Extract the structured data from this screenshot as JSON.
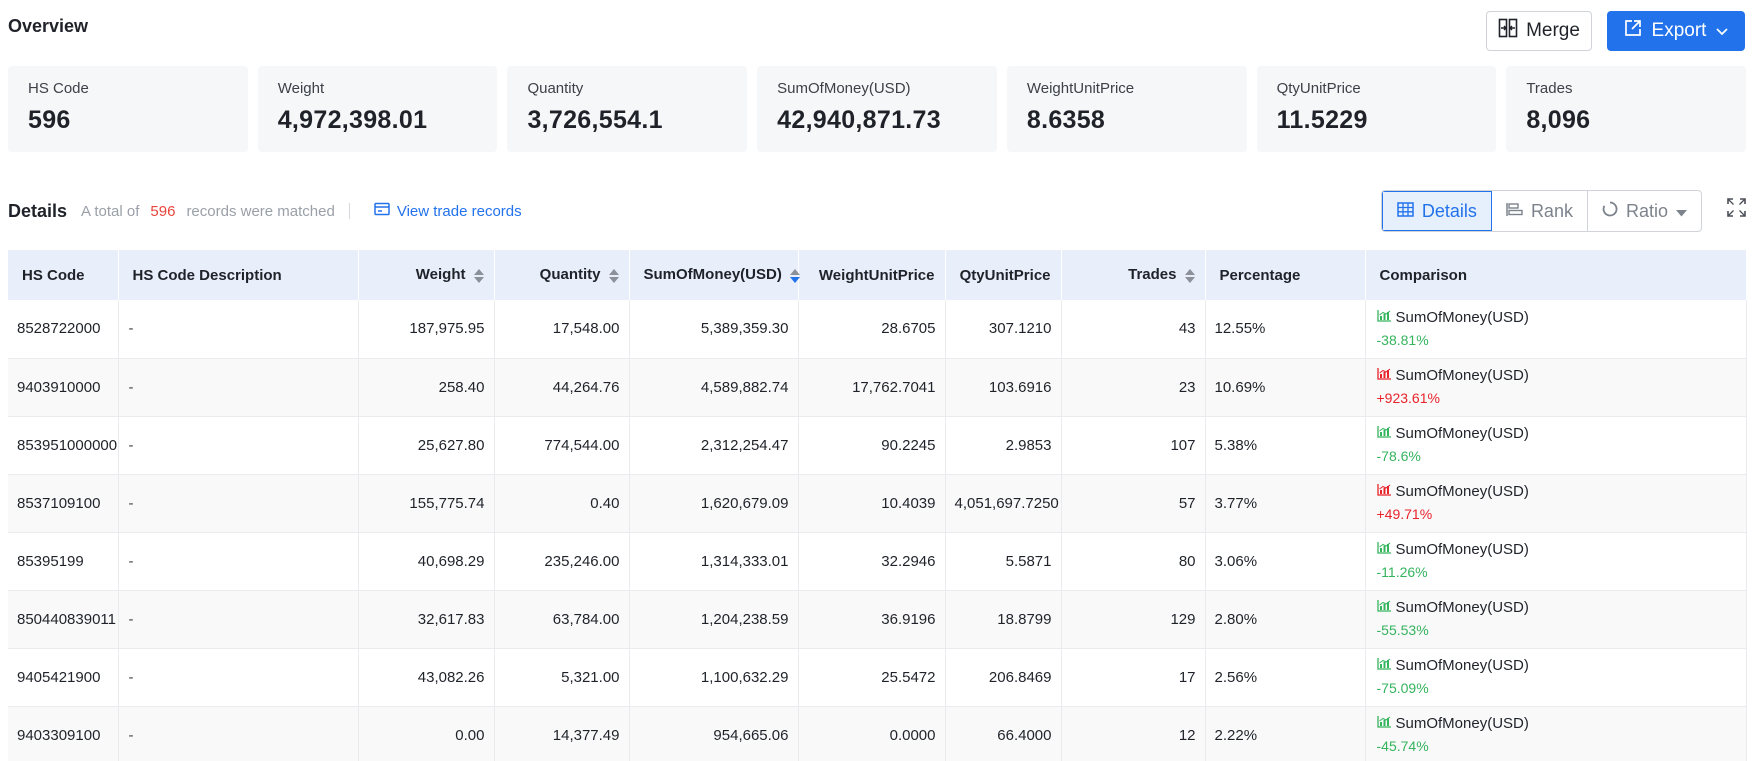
{
  "overview": {
    "title": "Overview",
    "merge_label": "Merge",
    "export_label": "Export"
  },
  "stats": [
    {
      "label": "HS Code",
      "value": "596"
    },
    {
      "label": "Weight",
      "value": "4,972,398.01"
    },
    {
      "label": "Quantity",
      "value": "3,726,554.1"
    },
    {
      "label": "SumOfMoney(USD)",
      "value": "42,940,871.73"
    },
    {
      "label": "WeightUnitPrice",
      "value": "8.6358"
    },
    {
      "label": "QtyUnitPrice",
      "value": "11.5229"
    },
    {
      "label": "Trades",
      "value": "8,096"
    }
  ],
  "details": {
    "title": "Details",
    "prefix": "A total of",
    "count": "596",
    "suffix": "records were matched",
    "view_link": "View trade records",
    "view_tabs": [
      "Details",
      "Rank",
      "Ratio"
    ]
  },
  "table": {
    "headers": [
      "HS Code",
      "HS Code Description",
      "Weight",
      "Quantity",
      "SumOfMoney(USD)",
      "WeightUnitPrice",
      "QtyUnitPrice",
      "Trades",
      "Percentage",
      "Comparison"
    ],
    "rows": [
      {
        "hs": "8528722000",
        "desc": "-",
        "weight": "187,975.95",
        "qty": "17,548.00",
        "money": "5,389,359.30",
        "wup": "28.6705",
        "qup": "307.1210",
        "trades": "43",
        "pct": "12.55%",
        "cmp_label": "SumOfMoney(USD)",
        "cmp_value": "-38.81%",
        "trend": "down"
      },
      {
        "hs": "9403910000",
        "desc": "-",
        "weight": "258.40",
        "qty": "44,264.76",
        "money": "4,589,882.74",
        "wup": "17,762.7041",
        "qup": "103.6916",
        "trades": "23",
        "pct": "10.69%",
        "cmp_label": "SumOfMoney(USD)",
        "cmp_value": "+923.61%",
        "trend": "up"
      },
      {
        "hs": "853951000000",
        "desc": "-",
        "weight": "25,627.80",
        "qty": "774,544.00",
        "money": "2,312,254.47",
        "wup": "90.2245",
        "qup": "2.9853",
        "trades": "107",
        "pct": "5.38%",
        "cmp_label": "SumOfMoney(USD)",
        "cmp_value": "-78.6%",
        "trend": "down"
      },
      {
        "hs": "8537109100",
        "desc": "-",
        "weight": "155,775.74",
        "qty": "0.40",
        "money": "1,620,679.09",
        "wup": "10.4039",
        "qup": "4,051,697.7250",
        "trades": "57",
        "pct": "3.77%",
        "cmp_label": "SumOfMoney(USD)",
        "cmp_value": "+49.71%",
        "trend": "up"
      },
      {
        "hs": "85395199",
        "desc": "-",
        "weight": "40,698.29",
        "qty": "235,246.00",
        "money": "1,314,333.01",
        "wup": "32.2946",
        "qup": "5.5871",
        "trades": "80",
        "pct": "3.06%",
        "cmp_label": "SumOfMoney(USD)",
        "cmp_value": "-11.26%",
        "trend": "down"
      },
      {
        "hs": "850440839011",
        "desc": "-",
        "weight": "32,617.83",
        "qty": "63,784.00",
        "money": "1,204,238.59",
        "wup": "36.9196",
        "qup": "18.8799",
        "trades": "129",
        "pct": "2.80%",
        "cmp_label": "SumOfMoney(USD)",
        "cmp_value": "-55.53%",
        "trend": "down"
      },
      {
        "hs": "9405421900",
        "desc": "-",
        "weight": "43,082.26",
        "qty": "5,321.00",
        "money": "1,100,632.29",
        "wup": "25.5472",
        "qup": "206.8469",
        "trades": "17",
        "pct": "2.56%",
        "cmp_label": "SumOfMoney(USD)",
        "cmp_value": "-75.09%",
        "trend": "down"
      },
      {
        "hs": "9403309100",
        "desc": "-",
        "weight": "0.00",
        "qty": "14,377.49",
        "money": "954,665.06",
        "wup": "0.0000",
        "qup": "66.4000",
        "trades": "12",
        "pct": "2.22%",
        "cmp_label": "SumOfMoney(USD)",
        "cmp_value": "-45.74%",
        "trend": "down"
      }
    ]
  },
  "colors": {
    "accent": "#2272eb",
    "up": "#e8232a",
    "down": "#35b45e",
    "count": "#e8453c"
  }
}
